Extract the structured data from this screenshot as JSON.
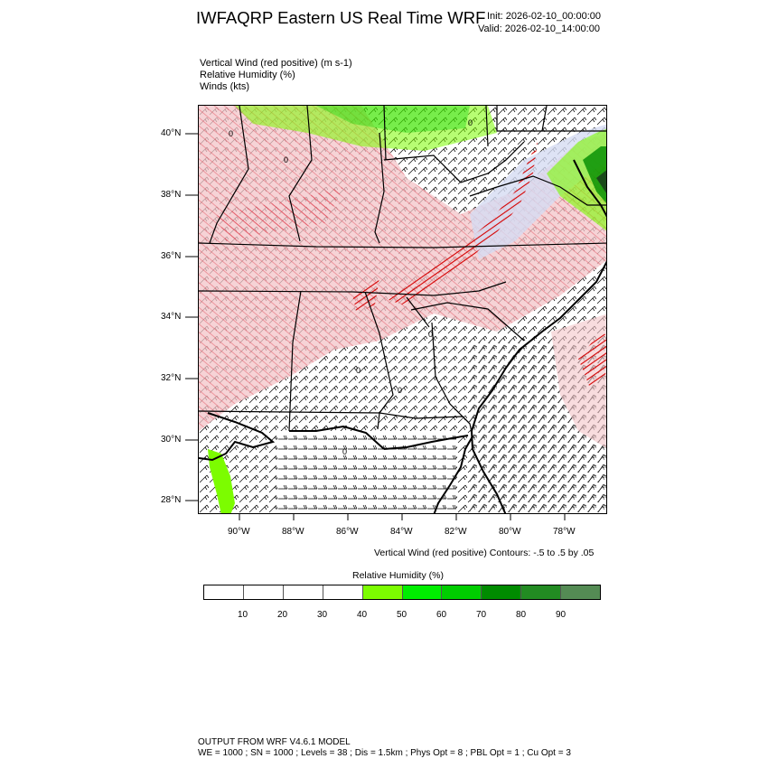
{
  "header": {
    "title": "IWFAQRP Eastern US Real Time WRF",
    "init": "Init: 2026-02-10_00:00:00",
    "valid": "Valid: 2026-02-10_14:00:00"
  },
  "variables": [
    "Vertical Wind (red positive)   (m s-1)",
    "Relative Humidity   (%)",
    "Winds   (kts)"
  ],
  "map": {
    "lat_labels": [
      "40°N",
      "38°N",
      "36°N",
      "34°N",
      "32°N",
      "30°N",
      "28°N"
    ],
    "lon_labels": [
      "90°W",
      "88°W",
      "86°W",
      "84°W",
      "82°W",
      "80°W",
      "78°W"
    ],
    "contour_zero_label": "0",
    "colors": {
      "updraft": "#d40000",
      "updraft_shade": "#f3c4c8",
      "downdraft": "#2a2ad8",
      "downdraft_shade": "#d6dcf2",
      "boundaries": "#000000",
      "barbs": "#000000"
    }
  },
  "contour_note": "Vertical Wind (red positive) Contours: -.5 to .5 by .05",
  "colorbar": {
    "title": "Relative Humidity  (%)",
    "labels": [
      "10",
      "20",
      "30",
      "40",
      "50",
      "60",
      "70",
      "80",
      "90"
    ],
    "colors": [
      "#ffffff",
      "#ffffff",
      "#ffffff",
      "#ffffff",
      "#7cfc00",
      "#00ee00",
      "#00cd00",
      "#008b00",
      "#228b22",
      "#548b54"
    ]
  },
  "footer": {
    "line1": "OUTPUT FROM WRF V4.6.1 MODEL",
    "line2": "WE = 1000 ; SN = 1000 ; Levels = 38 ; Dis = 1.5km ; Phys Opt = 8 ; PBL Opt = 1 ; Cu Opt = 3"
  }
}
